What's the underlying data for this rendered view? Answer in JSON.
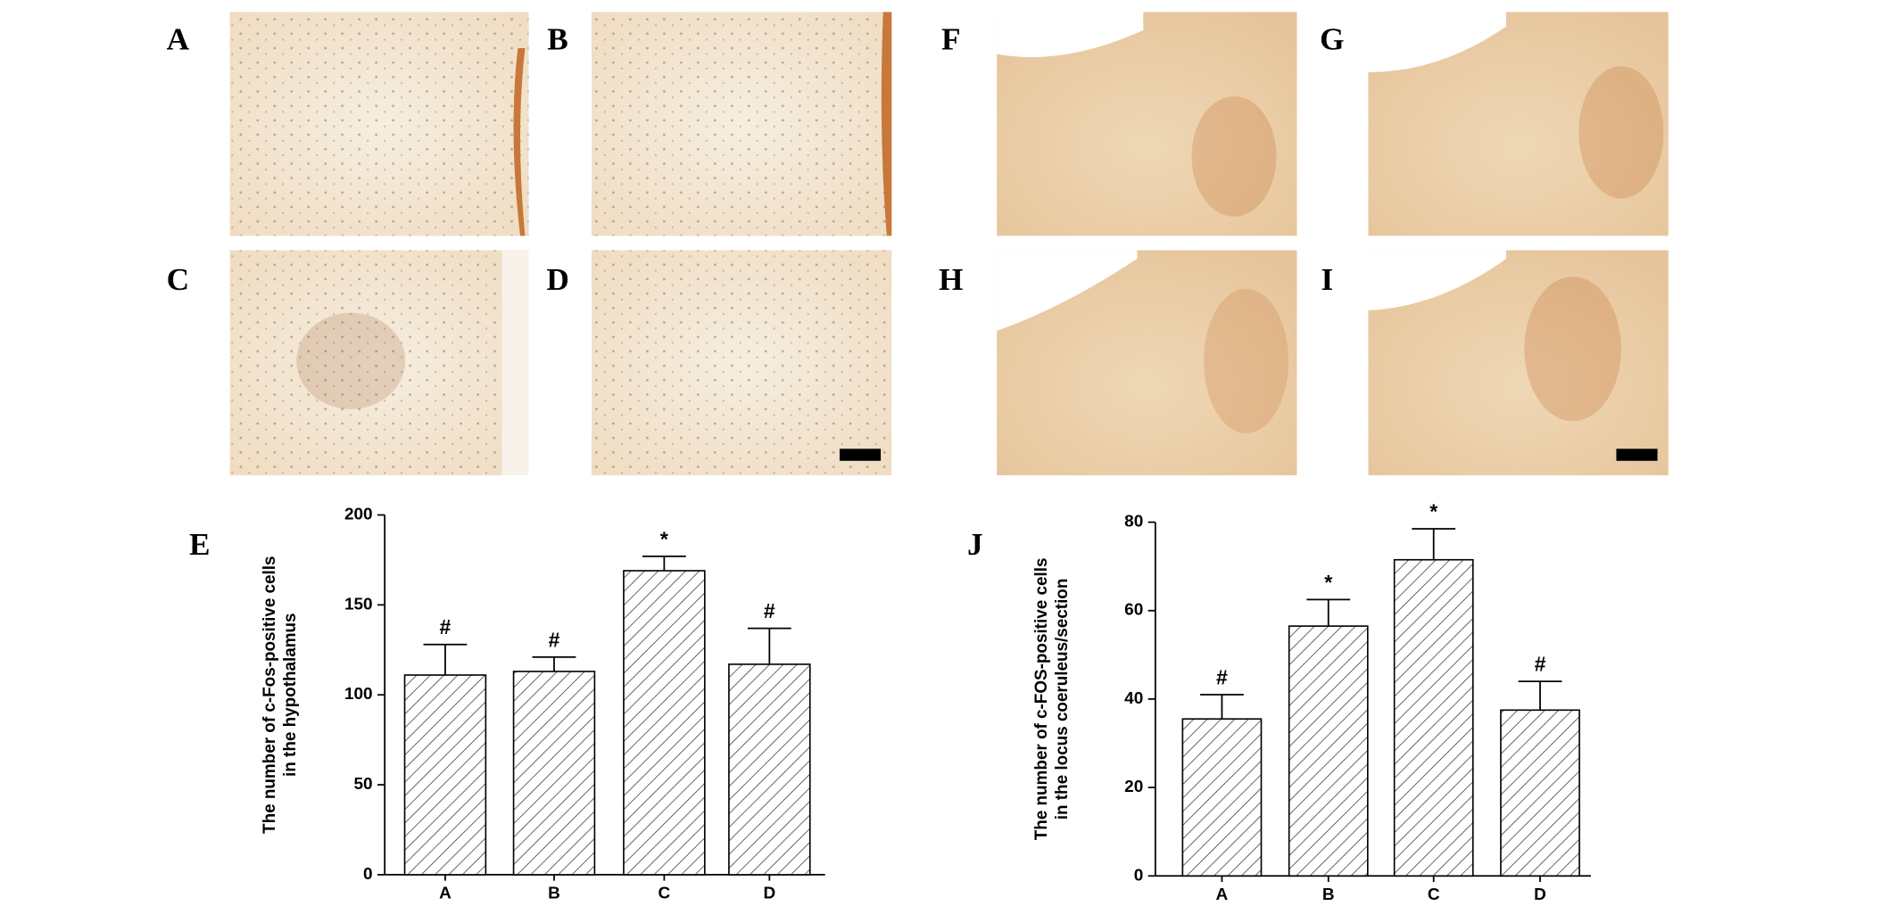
{
  "panel_labels": [
    "A",
    "B",
    "C",
    "D",
    "F",
    "G",
    "H",
    "I"
  ],
  "chart_data": [
    {
      "type": "bar",
      "panel_label": "E",
      "y_label": [
        "The number of c-Fos-positive cells",
        "in the hypothalamus"
      ],
      "categories": [
        "A",
        "B",
        "C",
        "D"
      ],
      "values": [
        111,
        113,
        169,
        117
      ],
      "errors": [
        17,
        8,
        8,
        20
      ],
      "annotations": [
        "#",
        "#",
        "*",
        "#"
      ],
      "ylim": [
        0,
        200
      ],
      "yticks": [
        0,
        50,
        100,
        150,
        200
      ]
    },
    {
      "type": "bar",
      "panel_label": "J",
      "y_label": [
        "The number of c-FOS-positive cells",
        "in the locus coeruleus/section"
      ],
      "categories": [
        "A",
        "B",
        "C",
        "D"
      ],
      "values": [
        35.5,
        56.5,
        71.5,
        37.5
      ],
      "errors": [
        5.5,
        6,
        7,
        6.5
      ],
      "annotations": [
        "#",
        "*",
        "*",
        "#"
      ],
      "ylim": [
        0,
        80
      ],
      "yticks": [
        0,
        20,
        40,
        60,
        80
      ]
    }
  ]
}
